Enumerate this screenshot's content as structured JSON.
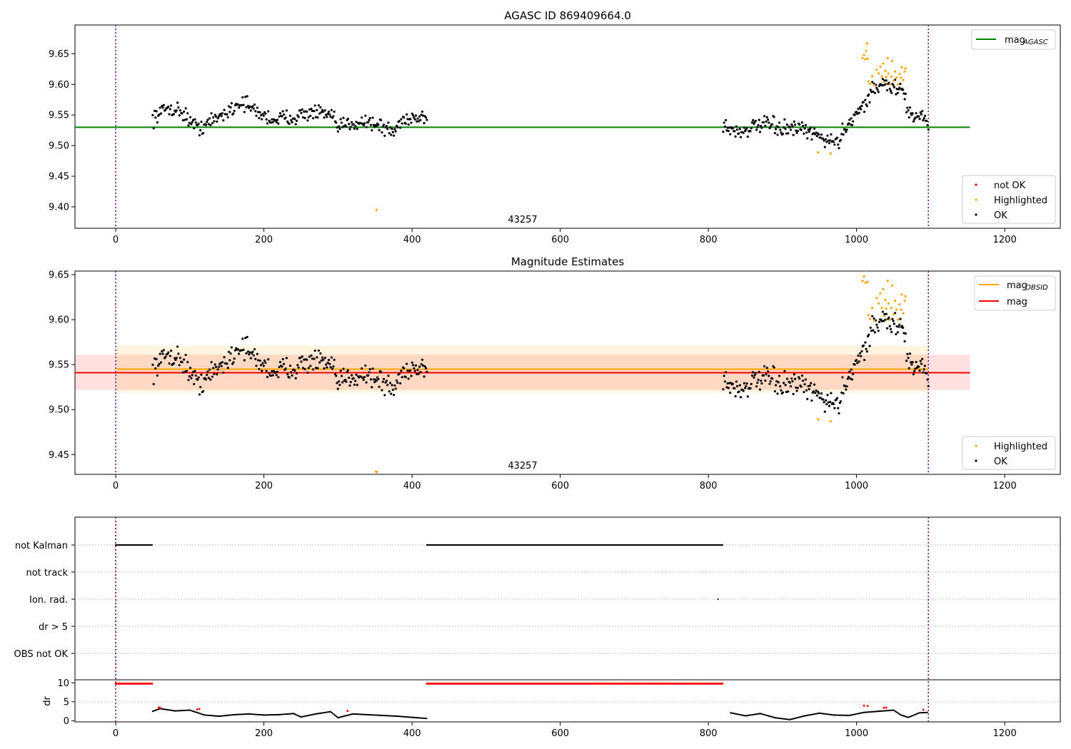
{
  "chart_data": [
    {
      "type": "scatter",
      "title": "AGASC ID 869409664.0",
      "xlim": [
        -55,
        1275
      ],
      "ylim": [
        9.365,
        9.697
      ],
      "yticks": [
        9.4,
        9.45,
        9.5,
        9.55,
        9.6,
        9.65
      ],
      "xticks": [
        0,
        200,
        400,
        600,
        800,
        1000,
        1200
      ],
      "vlines": [
        0,
        1097
      ],
      "annotation": "43257",
      "annotation_x": 545,
      "legend_top": {
        "position": "top-right",
        "entries": [
          {
            "label": "mag",
            "sub": "AGASC",
            "color": "#008000"
          }
        ]
      },
      "legend_bottom": {
        "position": "lower-right",
        "entries": [
          {
            "label": "not OK",
            "color": "#ff0000"
          },
          {
            "label": "Highlighted",
            "color": "#ffa500"
          },
          {
            "label": "OK",
            "color": "#000000"
          }
        ]
      },
      "hline": {
        "name": "mag_AGASC",
        "y": 9.53,
        "x": [
          -55,
          1153
        ],
        "color": "#008000"
      },
      "series": [
        {
          "name": "OK",
          "color": "#000000",
          "segments": [
            {
              "x": [
                50,
                420
              ],
              "knots": [
                [
                  50,
                  9.545
                ],
                [
                  70,
                  9.562
                ],
                [
                  90,
                  9.555
                ],
                [
                  110,
                  9.528
                ],
                [
                  130,
                  9.54
                ],
                [
                  150,
                  9.555
                ],
                [
                  170,
                  9.572
                ],
                [
                  190,
                  9.555
                ],
                [
                  210,
                  9.543
                ],
                [
                  230,
                  9.545
                ],
                [
                  250,
                  9.55
                ],
                [
                  270,
                  9.555
                ],
                [
                  290,
                  9.548
                ],
                [
                  300,
                  9.53
                ],
                [
                  320,
                  9.538
                ],
                [
                  340,
                  9.54
                ],
                [
                  360,
                  9.53
                ],
                [
                  375,
                  9.522
                ],
                [
                  390,
                  9.545
                ],
                [
                  420,
                  9.547
                ]
              ],
              "n": 300,
              "jitter": 0.011
            },
            {
              "x": [
                820,
                1097
              ],
              "knots": [
                [
                  820,
                  9.532
                ],
                [
                  840,
                  9.522
                ],
                [
                  860,
                  9.53
                ],
                [
                  880,
                  9.535
                ],
                [
                  900,
                  9.527
                ],
                [
                  920,
                  9.527
                ],
                [
                  940,
                  9.52
                ],
                [
                  960,
                  9.51
                ],
                [
                  975,
                  9.505
                ],
                [
                  985,
                  9.53
                ],
                [
                  1000,
                  9.555
                ],
                [
                  1010,
                  9.565
                ],
                [
                  1020,
                  9.59
                ],
                [
                  1035,
                  9.6
                ],
                [
                  1050,
                  9.595
                ],
                [
                  1062,
                  9.59
                ],
                [
                  1070,
                  9.555
                ],
                [
                  1080,
                  9.545
                ],
                [
                  1090,
                  9.555
                ],
                [
                  1097,
                  9.525
                ]
              ],
              "n": 235,
              "jitter": 0.011
            }
          ]
        },
        {
          "name": "Highlighted",
          "color": "#ffa500",
          "points": [
            [
              352,
              9.395
            ],
            [
              948,
              9.489
            ],
            [
              965,
              9.487
            ],
            [
              1008,
              9.643
            ],
            [
              1010,
              9.648
            ],
            [
              1012,
              9.641
            ],
            [
              1013,
              9.655
            ],
            [
              1014,
              9.667
            ],
            [
              1015,
              9.642
            ],
            [
              1016,
              9.605
            ],
            [
              1018,
              9.601
            ],
            [
              1021,
              9.613
            ],
            [
              1024,
              9.599
            ],
            [
              1027,
              9.624
            ],
            [
              1030,
              9.618
            ],
            [
              1032,
              9.629
            ],
            [
              1034,
              9.613
            ],
            [
              1036,
              9.634
            ],
            [
              1037,
              9.604
            ],
            [
              1039,
              9.622
            ],
            [
              1040,
              9.612
            ],
            [
              1042,
              9.643
            ],
            [
              1043,
              9.618
            ],
            [
              1045,
              9.6
            ],
            [
              1047,
              9.613
            ],
            [
              1048,
              9.638
            ],
            [
              1050,
              9.606
            ],
            [
              1052,
              9.621
            ],
            [
              1054,
              9.611
            ],
            [
              1056,
              9.6
            ],
            [
              1058,
              9.617
            ],
            [
              1060,
              9.611
            ],
            [
              1061,
              9.628
            ],
            [
              1063,
              9.607
            ],
            [
              1065,
              9.621
            ],
            [
              1066,
              9.626
            ]
          ]
        }
      ]
    },
    {
      "type": "scatter",
      "title": "Magnitude Estimates",
      "xlim": [
        -55,
        1275
      ],
      "ylim": [
        9.428,
        9.654
      ],
      "yticks": [
        9.45,
        9.5,
        9.55,
        9.6,
        9.65
      ],
      "xticks": [
        0,
        200,
        400,
        600,
        800,
        1000,
        1200
      ],
      "vlines": [
        0,
        1097
      ],
      "annotation": "43257",
      "annotation_x": 545,
      "legend_top": {
        "position": "top-right",
        "entries": [
          {
            "label": "mag",
            "sub": "OBSID",
            "color": "#ffa500"
          },
          {
            "label": "mag",
            "sub": "",
            "color": "#ff0000"
          }
        ]
      },
      "legend_bottom": {
        "position": "lower-right",
        "entries": [
          {
            "label": "Highlighted",
            "color": "#ffa500"
          },
          {
            "label": "OK",
            "color": "#000000"
          }
        ]
      },
      "bands": [
        {
          "y": [
            9.522,
            9.561
          ],
          "x": [
            -55,
            1153
          ],
          "color": "#ff0000",
          "opacity": 0.12
        },
        {
          "y": [
            9.519,
            9.571
          ],
          "x": [
            0,
            1097
          ],
          "color": "#ffa500",
          "opacity": 0.12
        }
      ],
      "hlines": [
        {
          "name": "mag_OBSID",
          "y": 9.545,
          "x": [
            0,
            1097
          ],
          "color": "#ffa500"
        },
        {
          "name": "mag",
          "y": 9.541,
          "x": [
            -55,
            1153
          ],
          "color": "#ff0000"
        }
      ],
      "series_ref": "same as chart 1 (OK + Highlighted)",
      "offscale_marker": {
        "x": 352,
        "color": "#ffa500"
      }
    },
    {
      "type": "scatter",
      "title": "",
      "xlim": [
        -55,
        1275
      ],
      "xticks": [
        0,
        200,
        400,
        600,
        800,
        1000,
        1200
      ],
      "vlines": [
        0,
        1097
      ],
      "categories": [
        "not Kalman",
        "not track",
        "Ion. rad.",
        "dr > 5",
        "OBS not OK"
      ],
      "flags": [
        {
          "category": "not Kalman",
          "x_ranges": [
            [
              0,
              50
            ],
            [
              420,
              820
            ]
          ]
        },
        {
          "category": "Ion. rad.",
          "x_points": [
            813
          ]
        }
      ]
    },
    {
      "type": "scatter",
      "title": "",
      "ylabel": "dr",
      "xlim": [
        -55,
        1275
      ],
      "ylim": [
        -0.3,
        10.8
      ],
      "yticks": [
        0,
        5,
        10
      ],
      "xticks": [
        0,
        200,
        400,
        600,
        800,
        1000,
        1200
      ],
      "xticklabels": [
        "0",
        "200",
        "400",
        "600",
        "800",
        "1000",
        "1200"
      ],
      "vlines": [
        0,
        1097
      ],
      "capped": {
        "y": 9.8,
        "color": "#ff0000",
        "x_ranges": [
          [
            0,
            50
          ],
          [
            420,
            820
          ]
        ]
      },
      "curve": {
        "color": "#000000",
        "knots": [
          [
            50,
            2.5
          ],
          [
            60,
            3.2
          ],
          [
            80,
            2.6
          ],
          [
            100,
            2.8
          ],
          [
            120,
            1.5
          ],
          [
            140,
            1.2
          ],
          [
            160,
            1.6
          ],
          [
            180,
            1.8
          ],
          [
            200,
            1.5
          ],
          [
            220,
            1.6
          ],
          [
            240,
            1.9
          ],
          [
            250,
            1.0
          ],
          [
            270,
            1.8
          ],
          [
            290,
            2.4
          ],
          [
            300,
            0.8
          ],
          [
            320,
            1.8
          ],
          [
            340,
            1.6
          ],
          [
            360,
            1.4
          ],
          [
            380,
            1.2
          ],
          [
            400,
            0.9
          ],
          [
            420,
            0.6
          ],
          [
            830,
            2.1
          ],
          [
            850,
            1.3
          ],
          [
            870,
            1.9
          ],
          [
            890,
            0.8
          ],
          [
            910,
            0.3
          ],
          [
            930,
            1.3
          ],
          [
            950,
            2.0
          ],
          [
            970,
            1.5
          ],
          [
            990,
            1.4
          ],
          [
            1010,
            2.2
          ],
          [
            1030,
            2.5
          ],
          [
            1050,
            2.8
          ],
          [
            1060,
            1.5
          ],
          [
            1070,
            0.9
          ],
          [
            1085,
            2.1
          ],
          [
            1097,
            2.2
          ]
        ]
      },
      "red_points": [
        [
          58,
          3.5
        ],
        [
          60,
          3.4
        ],
        [
          110,
          3.0
        ],
        [
          113,
          3.1
        ],
        [
          313,
          2.6
        ],
        [
          1010,
          4.0
        ],
        [
          1015,
          3.9
        ],
        [
          1037,
          3.4
        ],
        [
          1040,
          3.5
        ],
        [
          1090,
          2.9
        ]
      ]
    }
  ]
}
